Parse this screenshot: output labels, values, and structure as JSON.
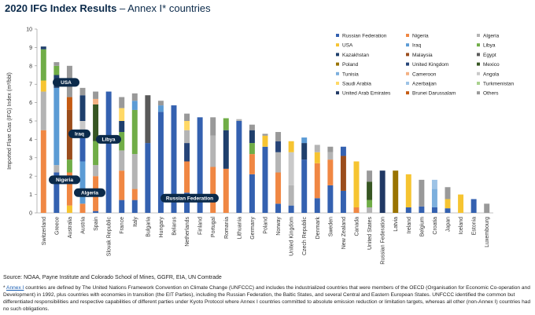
{
  "title": {
    "bold": "2020 IFG Index Results",
    "light": " – Annex I* countries"
  },
  "source": "Source: NOAA, Payne Institute and Colorado School of Mines, GGFR, EIA, UN Comtrade",
  "footnote": {
    "marker": "*",
    "link": "Annex I",
    "text": " countries are defined by The United Nations Framework Convention on Climate Change (UNFCCC) and includes the industrialized countries that were members of the OECD (Organisation for Economic Co-operation and Development) in 1992, plus countries with economies in transition (the EIT Parties), including the Russian Federation, the Baltic States, and several Central and Eastern European States.  UNFCCC identified the common but differentiated responsibilities and respective capabilities of different parties under Kyoto Protocol where Annex I countries committed to absolute emission reduction or limitation targets, whereas all other (non-Annex I) countries had no such obligations."
  },
  "colors": {
    "Russian Federation": "#3461b0",
    "Nigeria": "#f08743",
    "Algeria": "#b4b4b4",
    "USA": "#f6c431",
    "Iraq": "#5b9bd5",
    "Libya": "#70ad47",
    "Kazakhstan": "#1f3f6c",
    "Malaysia": "#9b4d1c",
    "Egypt": "#5a5a5a",
    "Poland": "#997300",
    "United Kingdom": "#264478",
    "Mexico": "#375623",
    "Tunisia": "#7cafdd",
    "Cameroon": "#f4b183",
    "Angola": "#c9c9c9",
    "Saudi Arabia": "#ffd966",
    "Azerbaijan": "#9dc3e6",
    "Turkmenistan": "#a9d18e",
    "United Arab Emirates": "#203864",
    "Brunei Darussalam": "#c55a11",
    "Others": "#999999",
    "callout_bg": "#0b2a4a"
  },
  "chart_data": {
    "type": "bar",
    "stacked": true,
    "ylabel": "Imported Flare Gas (IFG) Index (m³/bbl)",
    "ylim": [
      0,
      10
    ],
    "yticks": [
      0,
      1,
      2,
      3,
      4,
      5,
      6,
      7,
      8,
      9,
      10
    ],
    "grid": false,
    "legend_position": "top-right",
    "legend": [
      "Russian Federation",
      "Nigeria",
      "Algeria",
      "USA",
      "Iraq",
      "Libya",
      "Kazakhstan",
      "Malaysia",
      "Egypt",
      "Poland",
      "United Kingdom",
      "Mexico",
      "Tunisia",
      "Cameroon",
      "Angola",
      "Saudi Arabia",
      "Azerbaijan",
      "Turkmenistan",
      "United Arab Emirates",
      "Brunei Darussalam",
      "Others"
    ],
    "categories": [
      "Switzerland",
      "Greece",
      "Australia",
      "Austria",
      "Spain",
      "Slovak Republic",
      "France",
      "Italy",
      "Bulgaria",
      "Hungary",
      "Belarus",
      "Netherlands",
      "Finland",
      "Portugal",
      "Romania",
      "Lithuania",
      "Germany",
      "Poland",
      "Norway",
      "United Kingdom",
      "Czech Republic",
      "Denmark",
      "Sweden",
      "New Zealand",
      "Canada",
      "United States",
      "Russian Federation",
      "Latvia",
      "Ireland",
      "Belgium",
      "Croatia",
      "Japan",
      "Iceland",
      "Estonia",
      "Luxembourg"
    ],
    "stacks": [
      [
        {
          "s": "Nigeria",
          "v": 4.5
        },
        {
          "s": "Algeria",
          "v": 2.1
        },
        {
          "s": "USA",
          "v": 0.6
        },
        {
          "s": "Libya",
          "v": 1.7
        },
        {
          "s": "Kazakhstan",
          "v": 0.15
        }
      ],
      [
        {
          "s": "Russian Federation",
          "v": 2.2
        },
        {
          "s": "Algeria",
          "v": 0.4
        },
        {
          "s": "Iraq",
          "v": 4.2
        },
        {
          "s": "Kazakhstan",
          "v": 0.7
        },
        {
          "s": "Libya",
          "v": 0.5
        },
        {
          "s": "Others",
          "v": 0.2
        }
      ],
      [
        {
          "s": "USA",
          "v": 0.4
        },
        {
          "s": "Nigeria",
          "v": 1.8
        },
        {
          "s": "Libya",
          "v": 0.7
        },
        {
          "s": "Malaysia",
          "v": 2.7
        },
        {
          "s": "Brunei Darussalam",
          "v": 0.7
        },
        {
          "s": "Others",
          "v": 1.7
        }
      ],
      [
        {
          "s": "Nigeria",
          "v": 0.5
        },
        {
          "s": "Iraq",
          "v": 2.3
        },
        {
          "s": "Russian Federation",
          "v": 1.6
        },
        {
          "s": "Angola",
          "v": 0.6
        },
        {
          "s": "Kazakhstan",
          "v": 1.4
        },
        {
          "s": "Others",
          "v": 0.4
        }
      ],
      [
        {
          "s": "Russian Federation",
          "v": 0.1
        },
        {
          "s": "Nigeria",
          "v": 1.9
        },
        {
          "s": "Algeria",
          "v": 0.6
        },
        {
          "s": "Libya",
          "v": 1.3
        },
        {
          "s": "Mexico",
          "v": 2.0
        },
        {
          "s": "Cameroon",
          "v": 0.3
        },
        {
          "s": "Others",
          "v": 0.4
        }
      ],
      [
        {
          "s": "Russian Federation",
          "v": 6.6
        }
      ],
      [
        {
          "s": "Russian Federation",
          "v": 0.7
        },
        {
          "s": "Nigeria",
          "v": 1.6
        },
        {
          "s": "Algeria",
          "v": 1.1
        },
        {
          "s": "Libya",
          "v": 1.0
        },
        {
          "s": "Kazakhstan",
          "v": 0.6
        },
        {
          "s": "Saudi Arabia",
          "v": 0.7
        },
        {
          "s": "Others",
          "v": 0.6
        }
      ],
      [
        {
          "s": "Russian Federation",
          "v": 0.7
        },
        {
          "s": "Nigeria",
          "v": 0.6
        },
        {
          "s": "Algeria",
          "v": 1.9
        },
        {
          "s": "Libya",
          "v": 2.4
        },
        {
          "s": "Iraq",
          "v": 0.5
        },
        {
          "s": "Others",
          "v": 0.4
        }
      ],
      [
        {
          "s": "Russian Federation",
          "v": 3.8
        },
        {
          "s": "Egypt",
          "v": 2.6
        }
      ],
      [
        {
          "s": "Russian Federation",
          "v": 5.5
        },
        {
          "s": "Iraq",
          "v": 0.35
        },
        {
          "s": "Others",
          "v": 0.25
        }
      ],
      [
        {
          "s": "Russian Federation",
          "v": 5.85
        }
      ],
      [
        {
          "s": "Russian Federation",
          "v": 1.1
        },
        {
          "s": "Nigeria",
          "v": 1.7
        },
        {
          "s": "United Kingdom",
          "v": 1.0
        },
        {
          "s": "Algeria",
          "v": 0.7
        },
        {
          "s": "Saudi Arabia",
          "v": 0.5
        },
        {
          "s": "Others",
          "v": 0.4
        }
      ],
      [
        {
          "s": "Russian Federation",
          "v": 5.2
        }
      ],
      [
        {
          "s": "Nigeria",
          "v": 2.5
        },
        {
          "s": "Algeria",
          "v": 1.7
        },
        {
          "s": "Others",
          "v": 1.0
        }
      ],
      [
        {
          "s": "Nigeria",
          "v": 2.4
        },
        {
          "s": "Kazakhstan",
          "v": 2.1
        },
        {
          "s": "Libya",
          "v": 0.65
        }
      ],
      [
        {
          "s": "Russian Federation",
          "v": 5.0
        },
        {
          "s": "Algeria",
          "v": 0.1
        }
      ],
      [
        {
          "s": "Russian Federation",
          "v": 2.1
        },
        {
          "s": "Nigeria",
          "v": 1.1
        },
        {
          "s": "Libya",
          "v": 0.6
        },
        {
          "s": "Kazakhstan",
          "v": 0.7
        },
        {
          "s": "Others",
          "v": 0.3
        }
      ],
      [
        {
          "s": "Russian Federation",
          "v": 3.6
        },
        {
          "s": "USA",
          "v": 0.6
        },
        {
          "s": "Others",
          "v": 0.1
        }
      ],
      [
        {
          "s": "Russian Federation",
          "v": 0.5
        },
        {
          "s": "Nigeria",
          "v": 1.7
        },
        {
          "s": "Algeria",
          "v": 1.1
        },
        {
          "s": "United Kingdom",
          "v": 0.6
        },
        {
          "s": "Others",
          "v": 0.5
        }
      ],
      [
        {
          "s": "Russian Federation",
          "v": 0.4
        },
        {
          "s": "Algeria",
          "v": 1.1
        },
        {
          "s": "Angola",
          "v": 1.8
        },
        {
          "s": "USA",
          "v": 0.6
        }
      ],
      [
        {
          "s": "Russian Federation",
          "v": 2.9
        },
        {
          "s": "Kazakhstan",
          "v": 0.9
        },
        {
          "s": "Iraq",
          "v": 0.3
        }
      ],
      [
        {
          "s": "Russian Federation",
          "v": 0.8
        },
        {
          "s": "Nigeria",
          "v": 1.9
        },
        {
          "s": "USA",
          "v": 0.6
        },
        {
          "s": "Algeria",
          "v": 0.4
        }
      ],
      [
        {
          "s": "Russian Federation",
          "v": 1.5
        },
        {
          "s": "Nigeria",
          "v": 1.4
        },
        {
          "s": "Algeria",
          "v": 0.4
        },
        {
          "s": "Others",
          "v": 0.3
        }
      ],
      [
        {
          "s": "Russian Federation",
          "v": 1.2
        },
        {
          "s": "Malaysia",
          "v": 1.9
        },
        {
          "s": "Russian Federation",
          "v": 0.5
        }
      ],
      [
        {
          "s": "Nigeria",
          "v": 0.3
        },
        {
          "s": "USA",
          "v": 2.5
        }
      ],
      [
        {
          "s": "Algeria",
          "v": 0.3
        },
        {
          "s": "Libya",
          "v": 0.4
        },
        {
          "s": "Mexico",
          "v": 1.0
        },
        {
          "s": "Others",
          "v": 0.6
        }
      ],
      [
        {
          "s": "United Arab Emirates",
          "v": 2.3
        }
      ],
      [
        {
          "s": "Poland",
          "v": 2.3
        }
      ],
      [
        {
          "s": "Russian Federation",
          "v": 0.3
        },
        {
          "s": "USA",
          "v": 1.8
        }
      ],
      [
        {
          "s": "Russian Federation",
          "v": 0.35
        },
        {
          "s": "Others",
          "v": 1.45
        }
      ],
      [
        {
          "s": "Russian Federation",
          "v": 0.3
        },
        {
          "s": "Tunisia",
          "v": 1.0
        },
        {
          "s": "Azerbaijan",
          "v": 0.5
        }
      ],
      [
        {
          "s": "Russian Federation",
          "v": 0.25
        },
        {
          "s": "USA",
          "v": 0.5
        },
        {
          "s": "Others",
          "v": 0.65
        }
      ],
      [
        {
          "s": "USA",
          "v": 1.0
        }
      ],
      [
        {
          "s": "Russian Federation",
          "v": 0.75
        }
      ],
      [
        {
          "s": "Others",
          "v": 0.5
        }
      ]
    ],
    "annotations": [
      {
        "label": "USA",
        "category": "Switzerland"
      },
      {
        "label": "Iraq",
        "category": "Greece"
      },
      {
        "label": "Libya",
        "category": "Spain"
      },
      {
        "label": "Nigeria",
        "category": "Switzerland"
      },
      {
        "label": "Algeria",
        "category": "Australia"
      },
      {
        "label": "Russian Federation",
        "category": "Bulgaria"
      }
    ]
  }
}
